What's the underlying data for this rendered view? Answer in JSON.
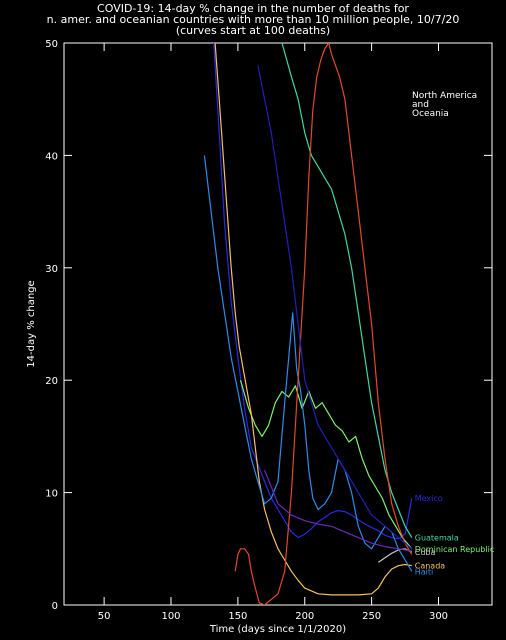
{
  "chart_data": {
    "type": "line",
    "title_lines": [
      "COVID-19: 14-day % change in the number of deaths for",
      "n. amer. and oceanian countries with more than 10 million people, 10/7/20",
      "(curves start at 100 deaths)"
    ],
    "xlabel": "Time (days since 1/1/2020)",
    "ylabel": "14-day % change",
    "xlim": [
      20,
      340
    ],
    "ylim": [
      0,
      50
    ],
    "xticks": [
      50,
      100,
      150,
      200,
      250,
      300
    ],
    "yticks": [
      0,
      10,
      20,
      30,
      40,
      50
    ],
    "grid": false,
    "annotation_lines": [
      "North America",
      "and",
      "Oceania"
    ],
    "series": [
      {
        "name": "Mexico",
        "color": "#2a2ae0",
        "x": [
          132,
          136,
          140,
          145,
          150,
          155,
          160,
          165,
          170,
          175,
          180,
          185,
          190,
          195,
          200,
          205,
          210,
          215,
          220,
          225,
          230,
          235,
          240,
          245,
          250,
          255,
          260,
          265,
          270,
          275,
          280
        ],
        "y": [
          50,
          42,
          34,
          27,
          22,
          17.5,
          14,
          12.5,
          11,
          9.5,
          8.5,
          7.5,
          6.5,
          6,
          6.3,
          6.8,
          7.4,
          7.8,
          8.2,
          8.4,
          8.3,
          8,
          7.6,
          7.2,
          6.9,
          6.6,
          6.2,
          6,
          5.9,
          6.3,
          9.5
        ]
      },
      {
        "name": "Guatemala",
        "color": "#3cd8a8",
        "x": [
          183,
          190,
          195,
          200,
          205,
          210,
          215,
          220,
          225,
          230,
          235,
          240,
          245,
          250,
          255,
          260,
          265,
          270,
          275,
          280
        ],
        "y": [
          50,
          47,
          45,
          42,
          40,
          39,
          38,
          37,
          35,
          33,
          30,
          26,
          22,
          18,
          15,
          12,
          10,
          8.5,
          7,
          6
        ]
      },
      {
        "name": "Dominican Republic",
        "color": "#7ff070",
        "x": [
          152,
          158,
          163,
          168,
          173,
          178,
          183,
          188,
          193,
          198,
          203,
          208,
          213,
          218,
          223,
          228,
          233,
          238,
          243,
          248,
          253,
          258,
          263,
          268,
          273,
          280
        ],
        "y": [
          20,
          17.5,
          16,
          15,
          16,
          18,
          19,
          18.5,
          19.5,
          17.5,
          19,
          17.5,
          18,
          17,
          16,
          15.5,
          14.5,
          15,
          13,
          11.5,
          10.5,
          9.5,
          8,
          7,
          6,
          5
        ]
      },
      {
        "name": "Cuba",
        "color": "#c8c8c8",
        "x": [
          255,
          260,
          265,
          270,
          275,
          280
        ],
        "y": [
          3.8,
          4.2,
          4.6,
          4.9,
          5.0,
          4.7
        ]
      },
      {
        "name": "Canada",
        "color": "#f4c060",
        "x": [
          133,
          136,
          139,
          142,
          145,
          148,
          151,
          154,
          157,
          160,
          163,
          166,
          170,
          175,
          180,
          185,
          190,
          195,
          200,
          210,
          220,
          230,
          240,
          250,
          255,
          260,
          265,
          270,
          275,
          280
        ],
        "y": [
          50,
          45,
          40,
          35,
          30,
          26,
          23,
          21,
          19,
          17,
          14,
          11,
          8.5,
          6.5,
          5,
          4,
          3,
          2.2,
          1.5,
          1,
          0.9,
          0.9,
          0.9,
          1,
          1.5,
          2.5,
          3.2,
          3.5,
          3.6,
          3.5
        ]
      },
      {
        "name": "Haiti",
        "color": "#2d8ce8",
        "x": [
          125,
          130,
          135,
          140,
          145,
          150,
          155,
          160,
          165,
          170,
          175,
          180,
          185,
          188,
          191,
          194,
          197,
          200,
          203,
          206,
          210,
          215,
          220,
          225,
          230,
          235,
          240,
          245,
          250,
          255,
          260,
          265,
          270,
          275,
          280
        ],
        "y": [
          40,
          35,
          30,
          26,
          22,
          19,
          16,
          13,
          11,
          9,
          9.5,
          11,
          18,
          22,
          26,
          21,
          19,
          16,
          12,
          9.5,
          8.5,
          9,
          10,
          13,
          12,
          10,
          7,
          5.5,
          5,
          6,
          7,
          6.5,
          5,
          4,
          3
        ]
      },
      {
        "name": "",
        "color": "#e04a2a",
        "x": [
          148,
          150,
          152,
          155,
          158,
          160,
          163,
          166,
          170,
          175,
          180,
          185,
          190,
          195,
          200,
          203,
          206,
          209,
          212,
          215,
          218,
          220,
          223,
          226,
          230,
          235,
          240,
          245,
          250,
          255,
          260,
          265,
          270,
          275,
          280
        ],
        "y": [
          3,
          4.5,
          5,
          5,
          4.5,
          3,
          1.5,
          0.2,
          0,
          0.5,
          1,
          3,
          10,
          20,
          30,
          38,
          44,
          47,
          48.5,
          49.5,
          50,
          49,
          48,
          47,
          45,
          40,
          35,
          30,
          25,
          18,
          13,
          9,
          7,
          5.5,
          4.5
        ]
      },
      {
        "name": "",
        "color": "#2020b8",
        "x": [
          165,
          170,
          175,
          180,
          185,
          190,
          195,
          200,
          210,
          220,
          230,
          240,
          250,
          260,
          270,
          280
        ],
        "y": [
          48,
          45,
          42,
          38,
          34,
          30,
          25,
          20,
          16,
          14,
          12,
          10,
          8,
          7,
          6,
          5
        ]
      },
      {
        "name": "",
        "color": "#6b2ab8",
        "x": [
          170,
          180,
          190,
          200,
          210,
          220,
          230,
          240,
          250,
          260,
          270,
          280
        ],
        "y": [
          12,
          9,
          8,
          7.5,
          7.2,
          7,
          6.5,
          6,
          5.5,
          5.2,
          5,
          4.8
        ]
      }
    ]
  },
  "ui": {
    "background": "#000000",
    "axis_color": "#ffffff",
    "text_color": "#ffffff"
  }
}
